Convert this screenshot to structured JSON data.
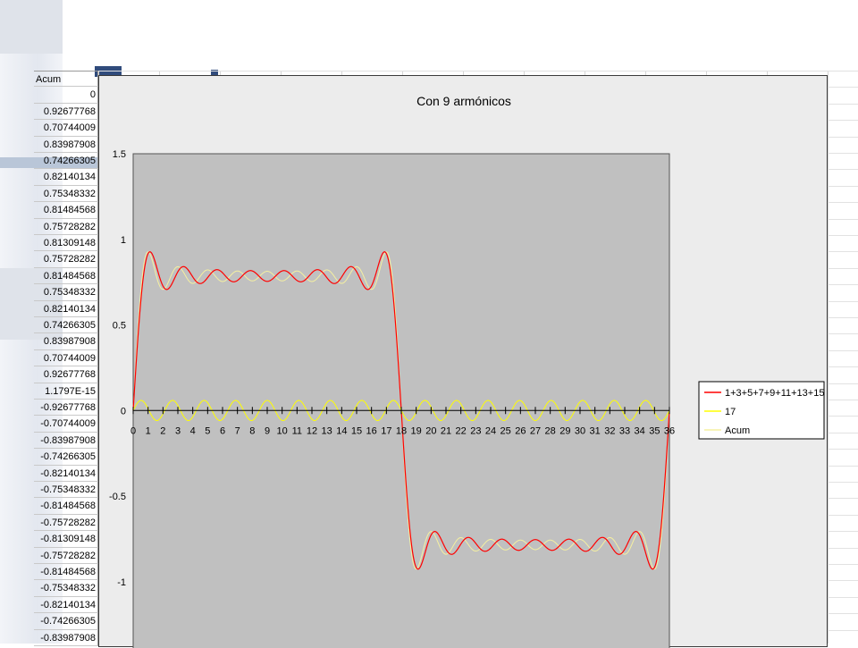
{
  "sheet": {
    "header": "Acum",
    "values": [
      "0",
      "0.92677768",
      "0.70744009",
      "0.83987908",
      "0.74266305",
      "0.82140134",
      "0.75348332",
      "0.81484568",
      "0.75728282",
      "0.81309148",
      "0.75728282",
      "0.81484568",
      "0.75348332",
      "0.82140134",
      "0.74266305",
      "0.83987908",
      "0.70744009",
      "0.92677768",
      "1.1797E-15",
      "-0.92677768",
      "-0.70744009",
      "-0.83987908",
      "-0.74266305",
      "-0.82140134",
      "-0.75348332",
      "-0.81484568",
      "-0.75728282",
      "-0.81309148",
      "-0.75728282",
      "-0.81484568",
      "-0.75348332",
      "-0.82140134",
      "-0.74266305",
      "-0.83987908"
    ]
  },
  "colors": {
    "plot_area": "#c0c0c0",
    "series_red": "#ff0000",
    "series_yellow": "#ffff00",
    "series_light": "#f5f0a0"
  },
  "chart_data": {
    "type": "line",
    "title": "Con 9 armónicos",
    "xlabel": "",
    "ylabel": "",
    "xlim": [
      0,
      36
    ],
    "ylim": [
      -1.5,
      1.5
    ],
    "visible_ylim": [
      -1.3,
      1.5
    ],
    "x_ticks": [
      "0",
      "1",
      "2",
      "3",
      "4",
      "5",
      "6",
      "7",
      "8",
      "9",
      "10",
      "11",
      "12",
      "13",
      "14",
      "15",
      "16",
      "17",
      "18",
      "19",
      "20",
      "21",
      "22",
      "23",
      "24",
      "25",
      "26",
      "27",
      "28",
      "29",
      "30",
      "31",
      "32",
      "33",
      "34",
      "35",
      "36"
    ],
    "y_ticks": [
      "1.5",
      "1",
      "0.5",
      "0",
      "-0.5",
      "-1"
    ],
    "y_tick_values": [
      1.5,
      1,
      0.5,
      0,
      -0.5,
      -1
    ],
    "grid": false,
    "legend_position": "right",
    "period": 36,
    "series": [
      {
        "name": "1+3+5+7+9+11+13+15",
        "color": "#ff0000",
        "harmonics": [
          1,
          3,
          5,
          7,
          9,
          11,
          13,
          15
        ]
      },
      {
        "name": "17",
        "color": "#ffff00",
        "harmonics": [
          17
        ]
      },
      {
        "name": "Acum",
        "color": "#f5f0a0",
        "harmonics": [
          1,
          3,
          5,
          7,
          9,
          11,
          13,
          15,
          17
        ]
      }
    ]
  }
}
